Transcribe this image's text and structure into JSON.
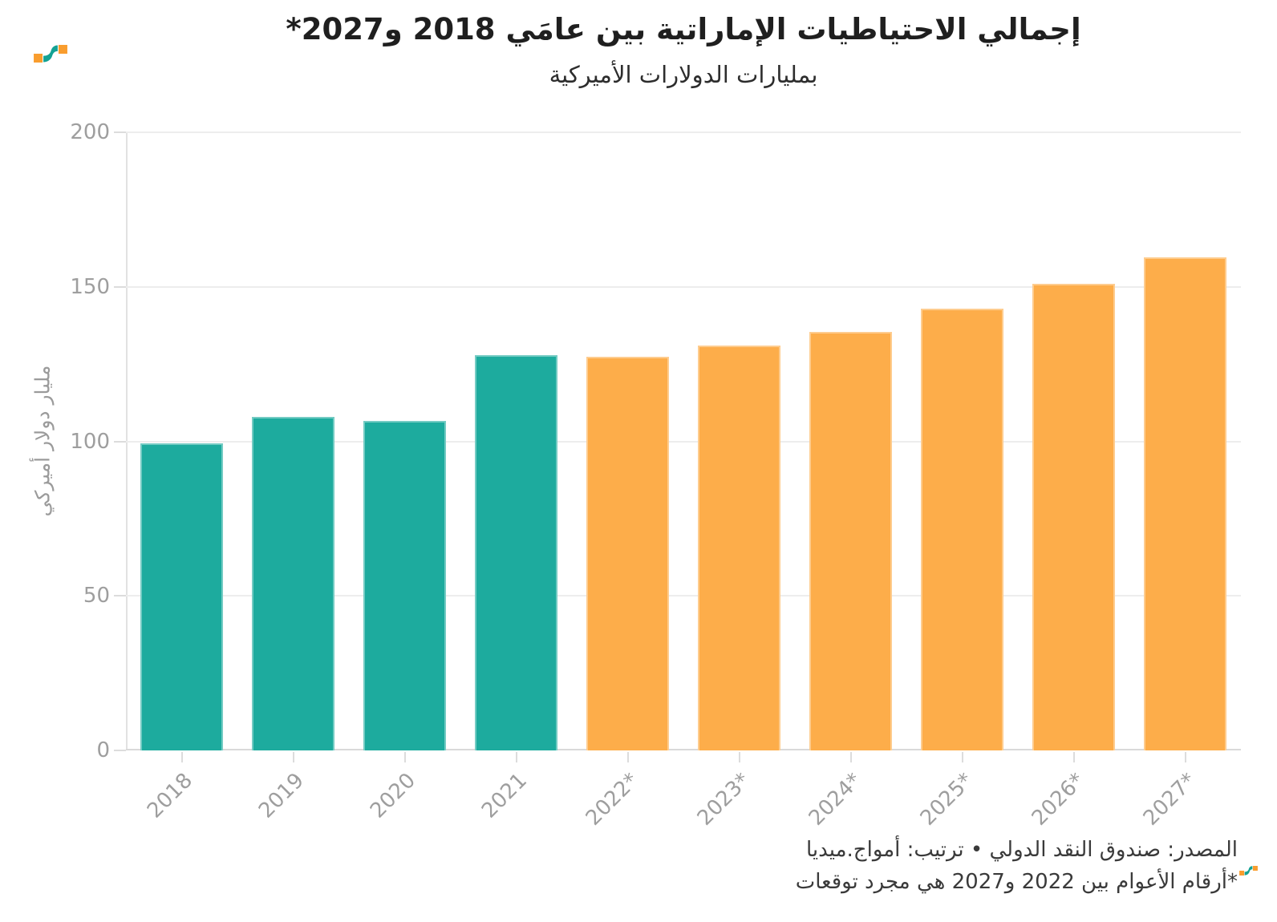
{
  "header": {
    "title": "إجمالي الاحتياطيات الإماراتية بين عامَي 2018 و2027*",
    "subtitle": "بمليارات الدولارات الأميركية"
  },
  "footer": {
    "source_line": "المصدر: صندوق النقد الدولي • ترتيب: أمواج.ميديا",
    "note_line": "*أرقام الأعوام بين 2022 و2027 هي مجرد توقعات"
  },
  "logo": {
    "name": "amwaj-media-logo",
    "teal": "#13A294",
    "orange": "#F99D2E"
  },
  "chart_data": {
    "type": "bar",
    "title": "إجمالي الاحتياطيات الإماراتية بين عامَي 2018 و2027*",
    "subtitle": "بمليارات الدولارات الأميركية",
    "categories": [
      "2018",
      "2019",
      "2020",
      "2021",
      "2022*",
      "2023*",
      "2024*",
      "2025*",
      "2026*",
      "2027*"
    ],
    "values": [
      99.3,
      107.8,
      106.5,
      127.8,
      127.5,
      130.9,
      135.5,
      143.0,
      151.0,
      159.5
    ],
    "bar_types": [
      "actual",
      "actual",
      "actual",
      "actual",
      "forecast",
      "forecast",
      "forecast",
      "forecast",
      "forecast",
      "forecast"
    ],
    "series_colors": {
      "actual": "#1DAB9E",
      "forecast": "#FDAD4A"
    },
    "xlabel": "",
    "ylabel": "مليار دولار أميركي",
    "ylim": [
      0,
      200
    ],
    "yticks": [
      0,
      50,
      100,
      150,
      200
    ],
    "grid": "horizontal-major",
    "legend": "none",
    "note": "grey rotated x labels, teal = actual years, orange = forecast years"
  }
}
